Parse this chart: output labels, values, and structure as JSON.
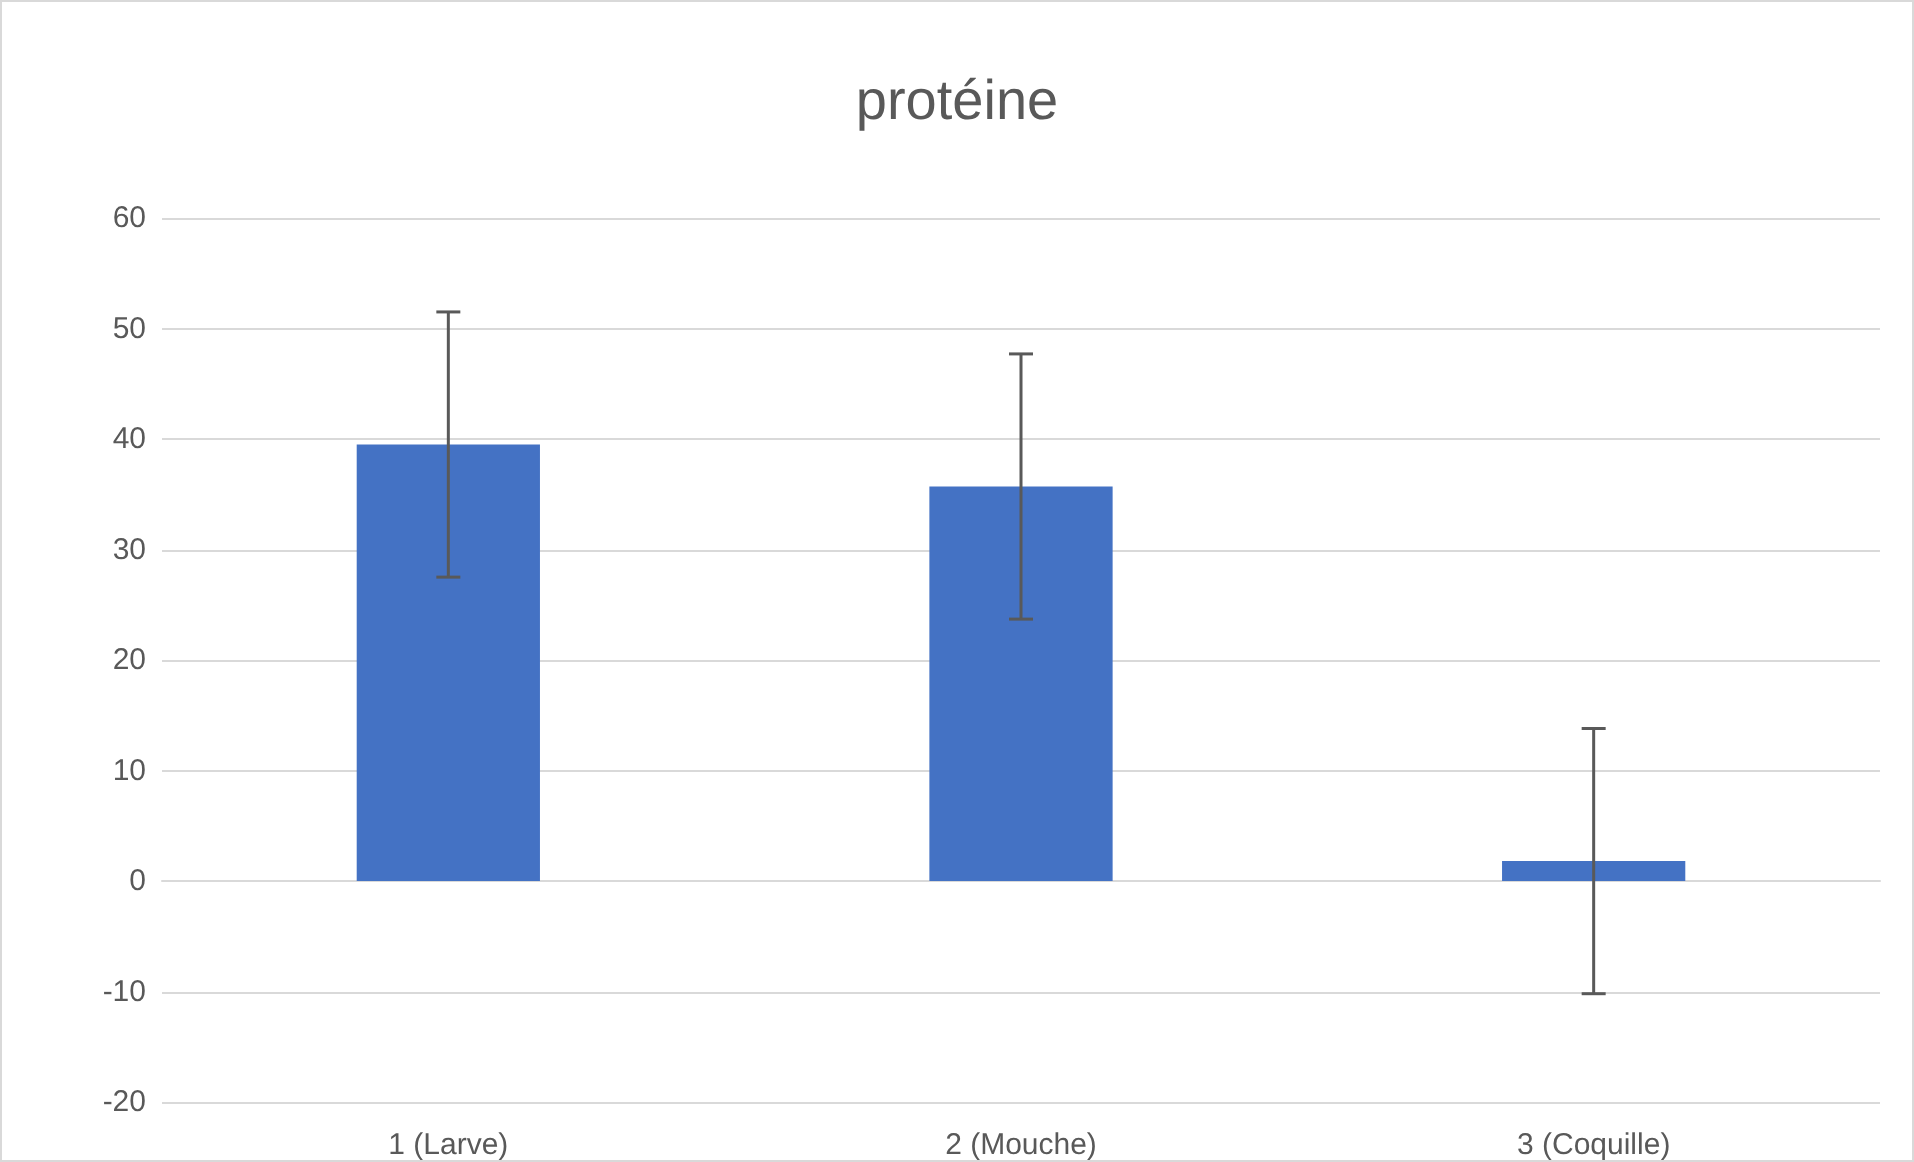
{
  "chart_data": {
    "type": "bar",
    "title": "protéine",
    "categories": [
      "1 (Larve)",
      "2 (Mouche)",
      "3 (Coquille)"
    ],
    "values": [
      39.5,
      35.7,
      1.8
    ],
    "errors": [
      12,
      12,
      12
    ],
    "color": "#4472c4",
    "ylim": [
      -20,
      60
    ],
    "yticks": [
      -20,
      -10,
      0,
      10,
      20,
      30,
      40,
      50,
      60
    ],
    "grid": "y"
  }
}
